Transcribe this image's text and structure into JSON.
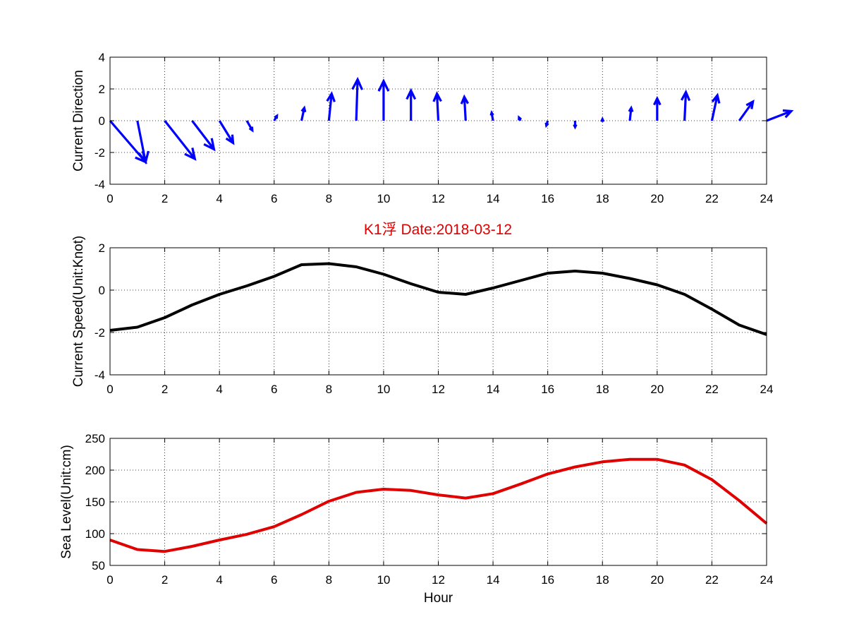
{
  "chart_data": [
    {
      "type": "quiver",
      "ylabel": "Current Direction",
      "xlabel": "",
      "xlim": [
        0,
        24
      ],
      "ylim": [
        -4,
        4
      ],
      "xticks": [
        "0",
        "2",
        "4",
        "6",
        "8",
        "10",
        "12",
        "14",
        "16",
        "18",
        "20",
        "22",
        "24"
      ],
      "yticks": [
        "-4",
        "-2",
        "0",
        "2",
        "4"
      ],
      "grid": true,
      "color": "#0000ff",
      "x": [
        0,
        1,
        2,
        3,
        4,
        5,
        6,
        7,
        8,
        9,
        10,
        11,
        12,
        13,
        14,
        15,
        16,
        17,
        18,
        19,
        20,
        21,
        22,
        23,
        24
      ],
      "u": [
        1.3,
        0.3,
        1.1,
        0.8,
        0.5,
        0.2,
        0.1,
        0.1,
        0.1,
        0.05,
        0,
        0,
        -0.05,
        -0.05,
        -0.05,
        -0.05,
        -0.05,
        0,
        0,
        0.05,
        0,
        0.05,
        0.2,
        0.5,
        0.9
      ],
      "v": [
        -2.6,
        -2.6,
        -2.4,
        -1.8,
        -1.4,
        -0.6,
        0.3,
        0.8,
        1.7,
        2.6,
        2.5,
        1.9,
        1.7,
        1.5,
        0.5,
        0.2,
        -0.3,
        -0.4,
        0.1,
        0.8,
        1.4,
        1.8,
        1.6,
        1.2,
        0.6
      ],
      "series": [
        {
          "x": [
            0,
            1,
            2,
            3,
            4,
            5,
            6,
            7,
            8,
            9,
            10,
            11,
            12,
            13,
            14,
            15,
            16,
            17,
            18,
            19,
            20,
            21,
            22,
            23,
            24
          ],
          "dx": [
            1.3,
            0.3,
            1.1,
            0.8,
            0.5,
            0.2,
            0.1,
            0.1,
            0.1,
            0.05,
            0,
            0,
            -0.05,
            -0.05,
            -0.05,
            -0.05,
            -0.05,
            0,
            0,
            0.05,
            0,
            0.05,
            0.2,
            0.5,
            0.9
          ],
          "dy": [
            -2.6,
            -2.6,
            -2.4,
            -1.8,
            -1.4,
            -0.6,
            0.3,
            0.8,
            1.7,
            2.6,
            2.5,
            1.9,
            1.7,
            1.5,
            0.5,
            0.2,
            -0.3,
            -0.4,
            0.1,
            0.8,
            1.4,
            1.8,
            1.6,
            1.2,
            0.6
          ]
        }
      ]
    },
    {
      "type": "line",
      "title": "K1浮    Date:2018-03-12",
      "ylabel": "Current Speed(Unit:Knot)",
      "xlabel": "",
      "xlim": [
        0,
        24
      ],
      "ylim": [
        -4,
        2
      ],
      "xticks": [
        "0",
        "2",
        "4",
        "6",
        "8",
        "10",
        "12",
        "14",
        "16",
        "18",
        "20",
        "22",
        "24"
      ],
      "yticks": [
        "-4",
        "-2",
        "0",
        "2"
      ],
      "grid": true,
      "series": [
        {
          "color": "#000000",
          "x": [
            0,
            1,
            2,
            3,
            4,
            5,
            6,
            7,
            8,
            9,
            10,
            11,
            12,
            13,
            14,
            15,
            16,
            17,
            18,
            19,
            20,
            21,
            22,
            23,
            24
          ],
          "y": [
            -1.9,
            -1.75,
            -1.3,
            -0.7,
            -0.2,
            0.2,
            0.65,
            1.2,
            1.25,
            1.1,
            0.75,
            0.3,
            -0.1,
            -0.2,
            0.1,
            0.45,
            0.8,
            0.9,
            0.8,
            0.55,
            0.25,
            -0.2,
            -0.9,
            -1.65,
            -2.1
          ]
        }
      ]
    },
    {
      "type": "line",
      "ylabel": "Sea Level(Unit:cm)",
      "xlabel": "Hour",
      "xlim": [
        0,
        24
      ],
      "ylim": [
        50,
        250
      ],
      "xticks": [
        "0",
        "2",
        "4",
        "6",
        "8",
        "10",
        "12",
        "14",
        "16",
        "18",
        "20",
        "22",
        "24"
      ],
      "yticks": [
        "50",
        "100",
        "150",
        "200",
        "250"
      ],
      "grid": true,
      "series": [
        {
          "color": "#e00000",
          "x": [
            0,
            1,
            2,
            3,
            4,
            5,
            6,
            7,
            8,
            9,
            10,
            11,
            12,
            13,
            14,
            15,
            16,
            17,
            18,
            19,
            20,
            21,
            22,
            23,
            24
          ],
          "y": [
            90,
            75,
            72,
            80,
            90,
            99,
            111,
            130,
            151,
            165,
            170,
            168,
            161,
            156,
            163,
            178,
            194,
            205,
            213,
            217,
            217,
            208,
            185,
            152,
            116
          ]
        }
      ]
    }
  ]
}
